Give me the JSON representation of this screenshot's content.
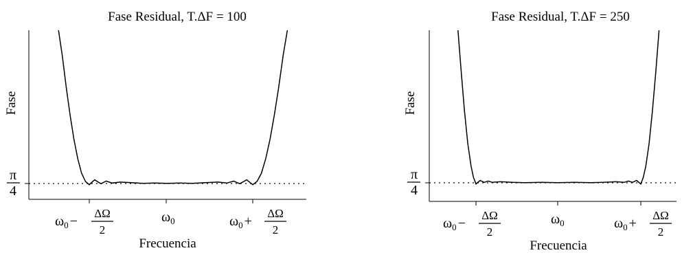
{
  "chart_data": [
    {
      "type": "line",
      "title": "Fase Residual, T.ΔF = 100",
      "xlabel": "Frecuencia",
      "ylabel": "Fase",
      "y_tick": {
        "num": "π",
        "den": "4",
        "value": 0.7854
      },
      "x_ticks": [
        {
          "base": "ω",
          "sub": "0",
          "op": "−",
          "num": "ΔΩ",
          "den": "2",
          "x": -1
        },
        {
          "base": "ω",
          "sub": "0",
          "op": "",
          "num": "",
          "den": "",
          "x": 0
        },
        {
          "base": "ω",
          "sub": "0",
          "op": "+",
          "num": "ΔΩ",
          "den": "2",
          "x": 1
        }
      ],
      "reference_line": {
        "y": 0.7854,
        "style": "dotted"
      },
      "xlim": [
        -1.75,
        2.05
      ],
      "ylim": [
        0.55,
        5.5
      ],
      "x": [
        -1.4,
        -1.35,
        -1.3,
        -1.25,
        -1.2,
        -1.15,
        -1.1,
        -1.05,
        -1.0,
        -0.93,
        -0.85,
        -0.78,
        -0.7,
        -0.6,
        -0.45,
        -0.3,
        -0.15,
        0.0,
        0.15,
        0.3,
        0.45,
        0.6,
        0.7,
        0.78,
        0.85,
        0.93,
        1.0,
        1.05,
        1.1,
        1.15,
        1.2,
        1.25,
        1.3,
        1.35,
        1.4
      ],
      "y": [
        5.5,
        4.7,
        3.75,
        2.9,
        2.15,
        1.55,
        1.1,
        0.85,
        0.75,
        0.9,
        0.78,
        0.86,
        0.8,
        0.83,
        0.81,
        0.79,
        0.8,
        0.79,
        0.8,
        0.79,
        0.81,
        0.83,
        0.8,
        0.86,
        0.78,
        0.9,
        0.75,
        0.85,
        1.1,
        1.55,
        2.15,
        2.9,
        3.75,
        4.7,
        5.5
      ]
    },
    {
      "type": "line",
      "title": "Fase Residual, T.ΔF = 250",
      "xlabel": "Frecuencia",
      "ylabel": "Fase",
      "y_tick": {
        "num": "π",
        "den": "4",
        "value": 0.7854
      },
      "x_ticks": [
        {
          "base": "ω",
          "sub": "0",
          "op": "−",
          "num": "ΔΩ",
          "den": "2",
          "x": -1
        },
        {
          "base": "ω",
          "sub": "0",
          "op": "",
          "num": "",
          "den": "",
          "x": 0
        },
        {
          "base": "ω",
          "sub": "0",
          "op": "+",
          "num": "ΔΩ",
          "den": "2",
          "x": 1
        }
      ],
      "reference_line": {
        "y": 0.7854,
        "style": "dotted"
      },
      "xlim": [
        -1.6,
        1.75
      ],
      "ylim": [
        0.55,
        5.5
      ],
      "x": [
        -1.22,
        -1.18,
        -1.14,
        -1.1,
        -1.06,
        -1.03,
        -1.0,
        -0.95,
        -0.9,
        -0.85,
        -0.8,
        -0.7,
        -0.55,
        -0.4,
        -0.2,
        0.0,
        0.2,
        0.4,
        0.55,
        0.7,
        0.8,
        0.85,
        0.9,
        0.95,
        1.0,
        1.03,
        1.06,
        1.1,
        1.14,
        1.18,
        1.22
      ],
      "y": [
        5.5,
        4.2,
        3.0,
        2.0,
        1.3,
        0.95,
        0.75,
        0.86,
        0.8,
        0.84,
        0.8,
        0.82,
        0.8,
        0.79,
        0.8,
        0.79,
        0.8,
        0.79,
        0.8,
        0.82,
        0.8,
        0.84,
        0.8,
        0.86,
        0.75,
        0.95,
        1.3,
        2.0,
        3.0,
        4.2,
        5.5
      ]
    }
  ]
}
